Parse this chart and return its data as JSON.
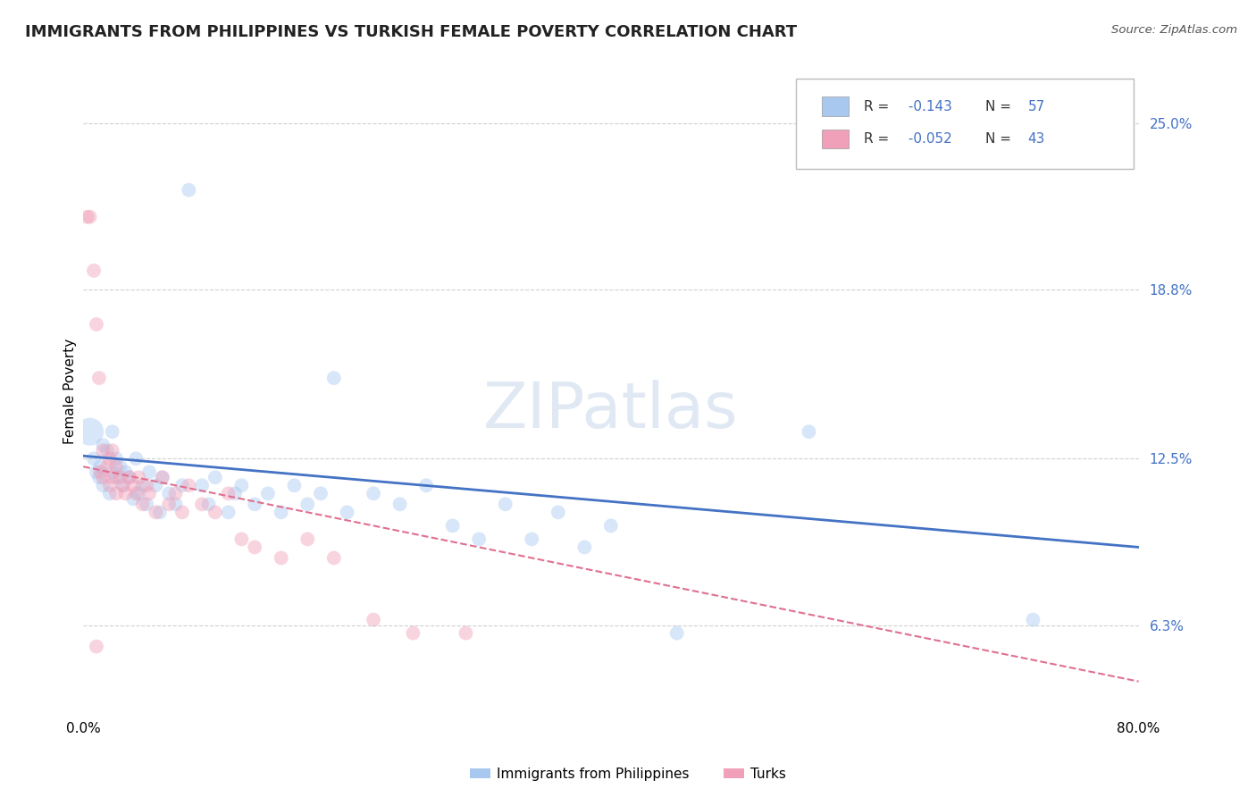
{
  "title": "IMMIGRANTS FROM PHILIPPINES VS TURKISH FEMALE POVERTY CORRELATION CHART",
  "source": "Source: ZipAtlas.com",
  "ylabel": "Female Poverty",
  "xlim": [
    0.0,
    0.8
  ],
  "ylim": [
    0.03,
    0.27
  ],
  "yticks": [
    0.063,
    0.125,
    0.188,
    0.25
  ],
  "ytick_labels": [
    "6.3%",
    "12.5%",
    "18.8%",
    "25.0%"
  ],
  "xticks": [
    0.0,
    0.8
  ],
  "xtick_labels": [
    "0.0%",
    "80.0%"
  ],
  "grid_color": "#d0d0d0",
  "blue_scatter": {
    "name": "Immigrants from Philippines",
    "color": "#a8c8f0",
    "line_color": "#4472c4",
    "line_style": "solid",
    "line_start_y": 0.126,
    "line_end_y": 0.092,
    "x": [
      0.005,
      0.008,
      0.01,
      0.012,
      0.013,
      0.015,
      0.015,
      0.018,
      0.02,
      0.022,
      0.022,
      0.025,
      0.025,
      0.028,
      0.03,
      0.032,
      0.035,
      0.038,
      0.04,
      0.042,
      0.045,
      0.048,
      0.05,
      0.055,
      0.058,
      0.06,
      0.065,
      0.07,
      0.075,
      0.08,
      0.09,
      0.095,
      0.1,
      0.11,
      0.115,
      0.12,
      0.13,
      0.14,
      0.15,
      0.16,
      0.17,
      0.18,
      0.19,
      0.2,
      0.22,
      0.24,
      0.26,
      0.28,
      0.3,
      0.32,
      0.34,
      0.36,
      0.38,
      0.4,
      0.45,
      0.55,
      0.72
    ],
    "y": [
      0.135,
      0.125,
      0.12,
      0.118,
      0.122,
      0.115,
      0.13,
      0.128,
      0.112,
      0.12,
      0.135,
      0.118,
      0.125,
      0.122,
      0.115,
      0.12,
      0.118,
      0.11,
      0.125,
      0.112,
      0.115,
      0.108,
      0.12,
      0.115,
      0.105,
      0.118,
      0.112,
      0.108,
      0.115,
      0.225,
      0.115,
      0.108,
      0.118,
      0.105,
      0.112,
      0.115,
      0.108,
      0.112,
      0.105,
      0.115,
      0.108,
      0.112,
      0.155,
      0.105,
      0.112,
      0.108,
      0.115,
      0.1,
      0.095,
      0.108,
      0.095,
      0.105,
      0.092,
      0.1,
      0.06,
      0.135,
      0.065
    ]
  },
  "pink_scatter": {
    "name": "Turks",
    "color": "#f0a0b8",
    "line_color": "#e07090",
    "line_style": "dashed",
    "line_start_y": 0.122,
    "line_end_y": 0.042,
    "x": [
      0.003,
      0.005,
      0.008,
      0.01,
      0.012,
      0.013,
      0.015,
      0.015,
      0.018,
      0.02,
      0.02,
      0.022,
      0.022,
      0.025,
      0.025,
      0.028,
      0.03,
      0.032,
      0.035,
      0.038,
      0.04,
      0.042,
      0.045,
      0.048,
      0.05,
      0.055,
      0.06,
      0.065,
      0.07,
      0.075,
      0.08,
      0.09,
      0.1,
      0.11,
      0.12,
      0.13,
      0.15,
      0.17,
      0.19,
      0.22,
      0.25,
      0.29,
      0.01
    ],
    "y": [
      0.215,
      0.215,
      0.195,
      0.175,
      0.155,
      0.12,
      0.128,
      0.118,
      0.122,
      0.125,
      0.115,
      0.118,
      0.128,
      0.122,
      0.112,
      0.118,
      0.115,
      0.112,
      0.118,
      0.115,
      0.112,
      0.118,
      0.108,
      0.115,
      0.112,
      0.105,
      0.118,
      0.108,
      0.112,
      0.105,
      0.115,
      0.108,
      0.105,
      0.112,
      0.095,
      0.092,
      0.088,
      0.095,
      0.088,
      0.065,
      0.06,
      0.06,
      0.055
    ]
  },
  "legend_items": [
    {
      "label_r": "R = ",
      "r_val": " -0.143",
      "label_n": "   N = ",
      "n_val": "57",
      "color": "#a8c8f0"
    },
    {
      "label_r": "R = ",
      "r_val": " -0.052",
      "label_n": "   N = ",
      "n_val": "43",
      "color": "#f0a0b8"
    }
  ],
  "bottom_legend": [
    {
      "label": "Immigrants from Philippines",
      "color": "#a8c8f0"
    },
    {
      "label": "Turks",
      "color": "#f0a0b8"
    }
  ],
  "title_fontsize": 13,
  "axis_label_fontsize": 11,
  "tick_fontsize": 11,
  "marker_size": 130,
  "large_marker_size": 500,
  "marker_alpha": 0.45,
  "background_color": "#ffffff",
  "watermark_text": "ZIPatlas",
  "watermark_color": "#c8d8ea",
  "watermark_fontsize": 52
}
